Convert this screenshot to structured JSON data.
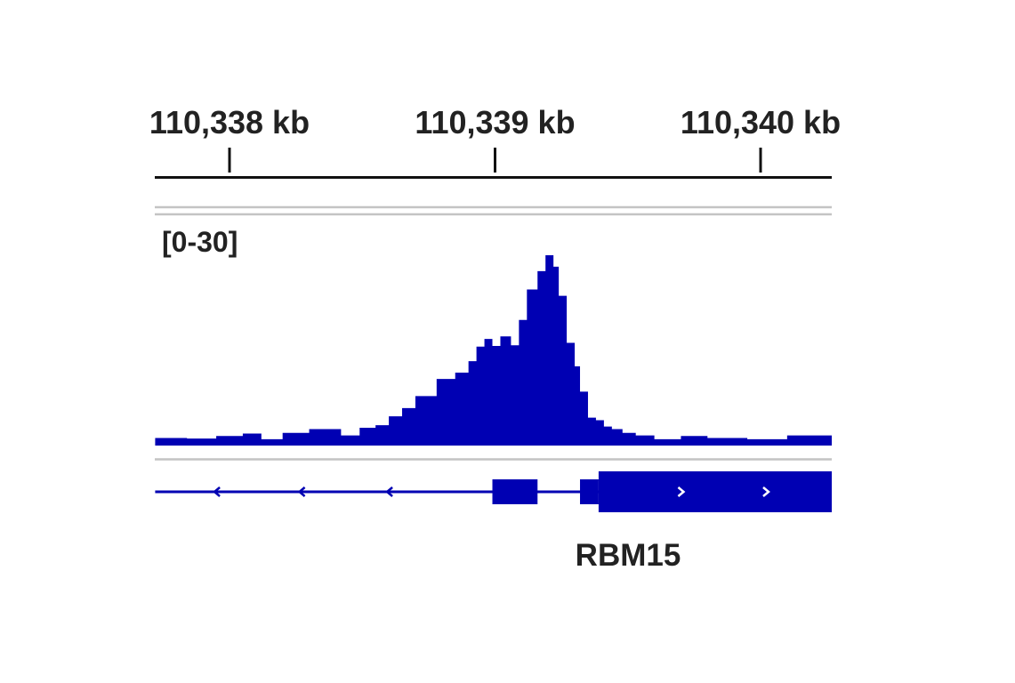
{
  "chart_data": {
    "type": "area",
    "track_range_label": "[0-30]",
    "ylim": [
      0,
      30
    ],
    "x_ticks": [
      {
        "kb": 110338,
        "label": "110,338 kb"
      },
      {
        "kb": 110339,
        "label": "110,339 kb"
      },
      {
        "kb": 110340,
        "label": "110,340 kb"
      }
    ],
    "xlim_kb": [
      110337.72,
      110340.27
    ],
    "series": [
      {
        "color": "#0000b3",
        "x_kb": [
          110337.72,
          110337.84,
          110337.95,
          110338.05,
          110338.12,
          110338.2,
          110338.3,
          110338.42,
          110338.49,
          110338.55,
          110338.6,
          110338.65,
          110338.7,
          110338.78,
          110338.85,
          110338.9,
          110338.93,
          110338.96,
          110338.99,
          110339.02,
          110339.06,
          110339.09,
          110339.12,
          110339.16,
          110339.19,
          110339.22,
          110339.24,
          110339.27,
          110339.3,
          110339.32,
          110339.35,
          110339.38,
          110339.41,
          110339.44,
          110339.48,
          110339.53,
          110339.6,
          110339.7,
          110339.8,
          110339.95,
          110340.1,
          110340.27
        ],
        "y": [
          1.2,
          1.1,
          1.5,
          1.9,
          1.0,
          2.0,
          2.6,
          1.6,
          2.8,
          3.2,
          4.6,
          5.9,
          7.8,
          10.5,
          11.5,
          13.3,
          15.6,
          16.8,
          15.7,
          17.2,
          15.8,
          19.8,
          24.6,
          27.5,
          30.0,
          28.2,
          23.6,
          16.2,
          12.5,
          8.5,
          4.4,
          4.0,
          3.0,
          2.6,
          2.0,
          1.6,
          1.0,
          1.5,
          1.2,
          1.0,
          1.6,
          1.2
        ]
      }
    ]
  },
  "gene": {
    "name": "RBM15",
    "color": "#0000b3",
    "intron_span_kb": [
      110337.72,
      110340.27
    ],
    "exon_blocks_kb": [
      {
        "start": 110338.99,
        "end": 110339.16,
        "kind": "utr"
      },
      {
        "start": 110339.32,
        "end": 110339.39,
        "kind": "utr"
      },
      {
        "start": 110339.39,
        "end": 110340.27,
        "kind": "coding"
      }
    ],
    "left_arrows_kb": [
      110337.95,
      110338.27,
      110338.6
    ],
    "right_arrows_kb": [
      110339.7,
      110340.02
    ]
  }
}
